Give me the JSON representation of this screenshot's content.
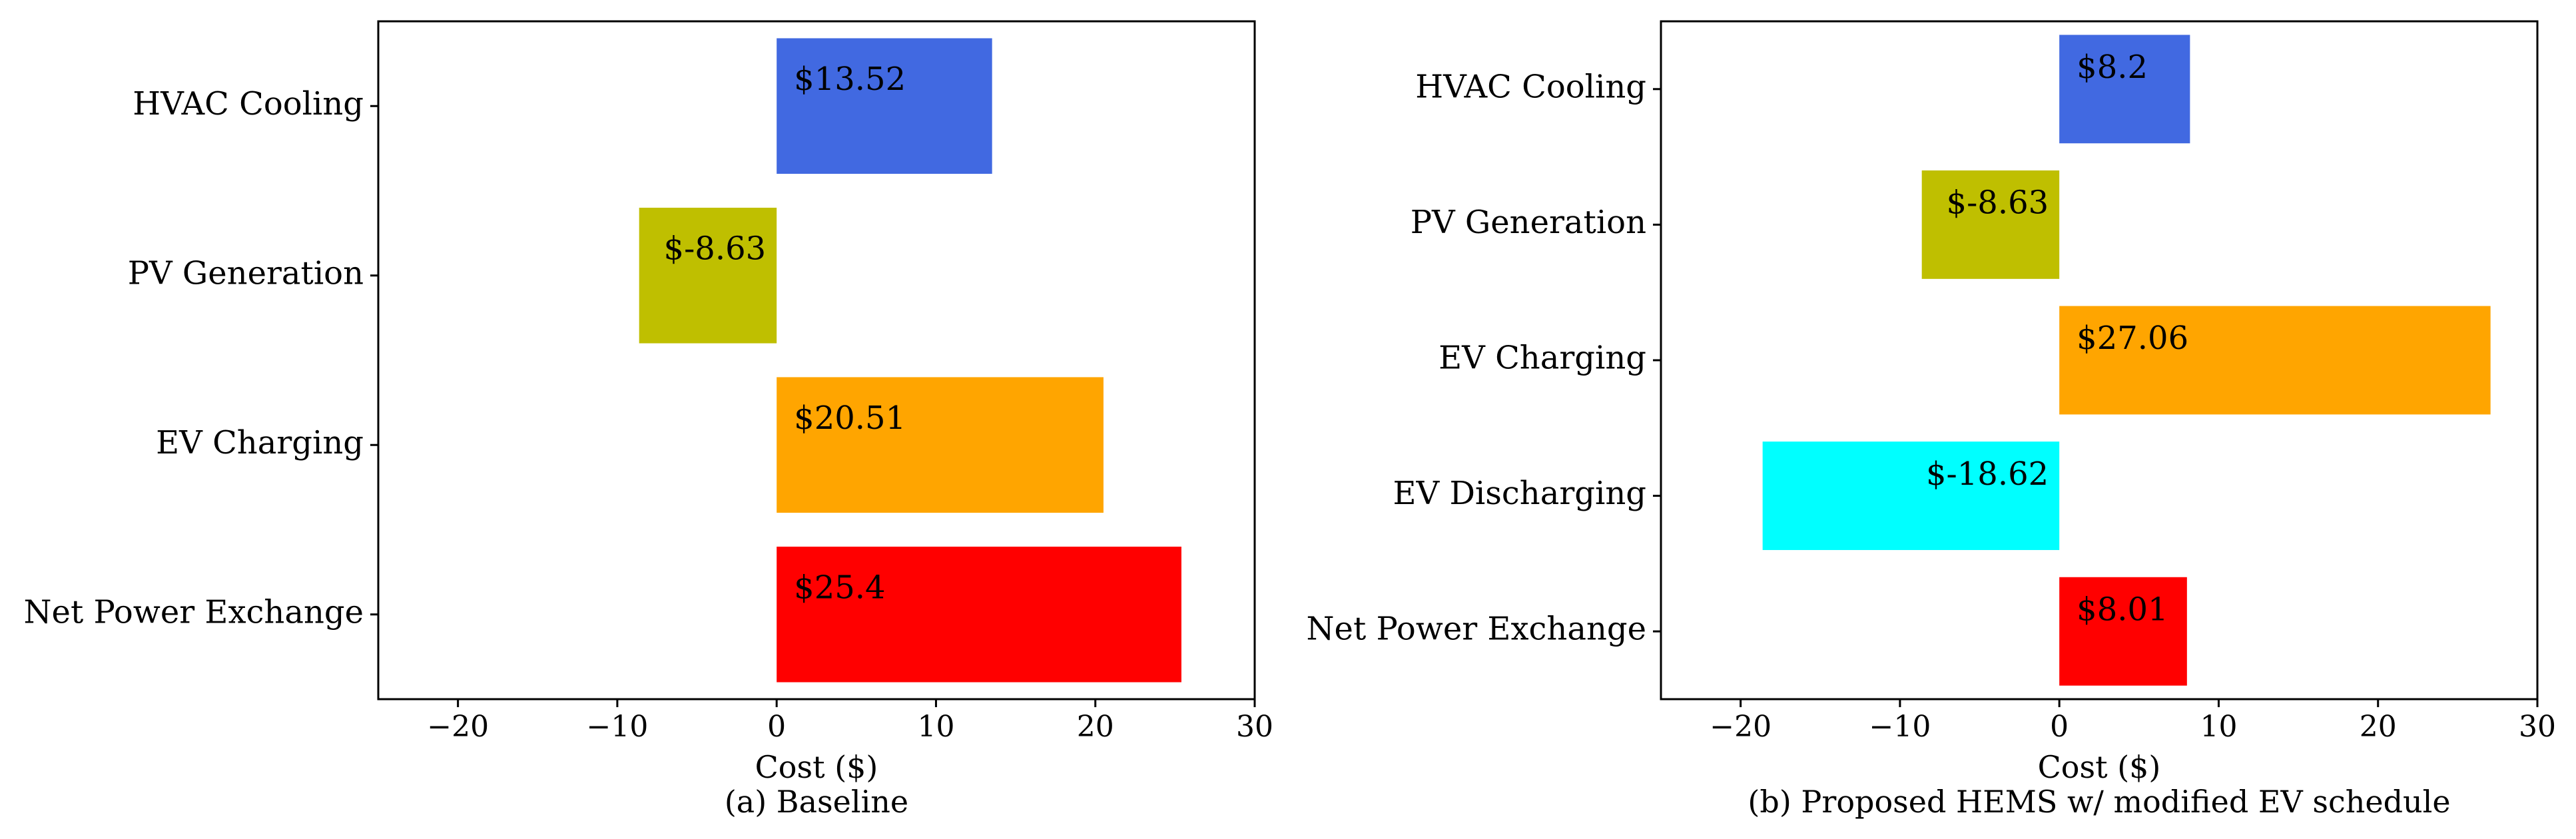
{
  "chart_data": [
    {
      "type": "bar",
      "orientation": "horizontal",
      "caption": "(a) Baseline",
      "xlabel": "Cost ($)",
      "xlim": [
        -25,
        30
      ],
      "xticks": [
        -20,
        -10,
        0,
        10,
        20,
        30
      ],
      "xtick_labels": [
        "−20",
        "−10",
        "0",
        "10",
        "20",
        "30"
      ],
      "categories": [
        "HVAC Cooling",
        "PV Generation",
        "EV Charging",
        "Net Power Exchange"
      ],
      "values": [
        13.52,
        -8.63,
        20.51,
        25.4
      ],
      "value_labels": [
        "$13.52",
        "$-8.63",
        "$20.51",
        "$25.4"
      ],
      "colors": [
        "#4169e1",
        "#bfbf00",
        "#ffa500",
        "#ff0000"
      ],
      "grid": false
    },
    {
      "type": "bar",
      "orientation": "horizontal",
      "caption": "(b) Proposed HEMS w/ modified EV schedule",
      "xlabel": "Cost ($)",
      "xlim": [
        -25,
        30
      ],
      "xticks": [
        -20,
        -10,
        0,
        10,
        20,
        30
      ],
      "xtick_labels": [
        "−20",
        "−10",
        "0",
        "10",
        "20",
        "30"
      ],
      "categories": [
        "HVAC Cooling",
        "PV Generation",
        "EV Charging",
        "EV Discharging",
        "Net Power Exchange"
      ],
      "values": [
        8.2,
        -8.63,
        27.06,
        -18.62,
        8.01
      ],
      "value_labels": [
        "$8.2",
        "$-8.63",
        "$27.06",
        "$-18.62",
        "$8.01"
      ],
      "colors": [
        "#4169e1",
        "#bfbf00",
        "#ffa500",
        "#00ffff",
        "#ff0000"
      ],
      "grid": false
    }
  ]
}
